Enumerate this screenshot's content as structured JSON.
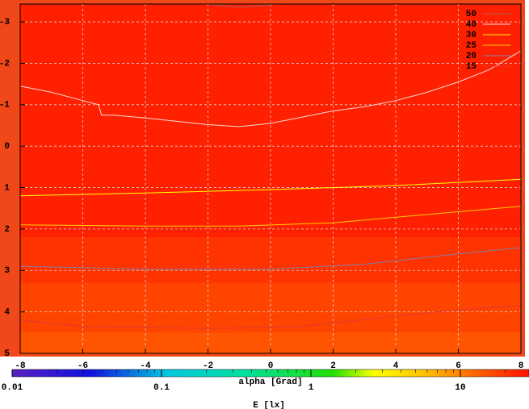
{
  "chart_data": {
    "type": "contour",
    "xlim": [
      -8,
      8
    ],
    "xticks": [
      -8,
      -6,
      -4,
      -2,
      0,
      2,
      4,
      6,
      8
    ],
    "ylim": [
      5,
      -3.43
    ],
    "yticks": [
      -3,
      -2,
      -1,
      0,
      1,
      2,
      3,
      4,
      5
    ],
    "grid": true,
    "legend": "upper right",
    "bands": [
      {
        "y0": -3.43,
        "y1": 2.2,
        "color": "#ff2000"
      },
      {
        "y0": 2.2,
        "y1": 3.3,
        "color": "#ff3300"
      },
      {
        "y0": 3.3,
        "y1": 4.5,
        "color": "#ff4400"
      },
      {
        "y0": 4.5,
        "y1": 5,
        "color": "#ff5500"
      }
    ],
    "series": [
      {
        "name": "50",
        "color": "#a86060",
        "x": [
          -2,
          -1,
          -0.5,
          0.2
        ],
        "y": [
          -3.43,
          -3.35,
          -3.38,
          -3.43
        ]
      },
      {
        "name": "40",
        "color": "#ffd8d8",
        "x": [
          -8,
          -7,
          -6,
          -5.5,
          -5.4,
          -5,
          -4,
          -3,
          -2,
          -1,
          0,
          1,
          2,
          3,
          4,
          5,
          6,
          7,
          8
        ],
        "y": [
          -1.45,
          -1.3,
          -1.1,
          -1.0,
          -0.75,
          -0.75,
          -0.68,
          -0.6,
          -0.52,
          -0.47,
          -0.55,
          -0.7,
          -0.85,
          -0.95,
          -1.1,
          -1.3,
          -1.55,
          -1.85,
          -2.3
        ]
      },
      {
        "name": "30",
        "color": "#ffff00",
        "x": [
          -8,
          -4,
          0,
          4,
          8
        ],
        "y": [
          1.2,
          1.13,
          1.05,
          0.95,
          0.8
        ]
      },
      {
        "name": "25",
        "color": "#ffcc00",
        "x": [
          -8,
          -4,
          -1,
          2,
          5,
          8
        ],
        "y": [
          1.9,
          1.93,
          1.93,
          1.85,
          1.65,
          1.45
        ]
      },
      {
        "name": "20",
        "color": "#8080a8",
        "x": [
          -8,
          -4,
          0,
          3,
          6,
          8
        ],
        "y": [
          2.9,
          2.97,
          2.97,
          2.85,
          2.6,
          2.45
        ]
      },
      {
        "name": "15",
        "color": "#e03838",
        "x": [
          -8,
          -6,
          -2,
          1,
          4,
          6,
          8
        ],
        "y": [
          4.2,
          4.35,
          4.4,
          4.35,
          4.1,
          3.95,
          3.85
        ]
      }
    ],
    "colorbar": {
      "label": "alpha [Grad]",
      "xlabel": "E [lx]",
      "lim": [
        0.01,
        28.8
      ],
      "ticks": [
        0.01,
        0.1,
        1,
        10
      ],
      "log": true
    }
  }
}
